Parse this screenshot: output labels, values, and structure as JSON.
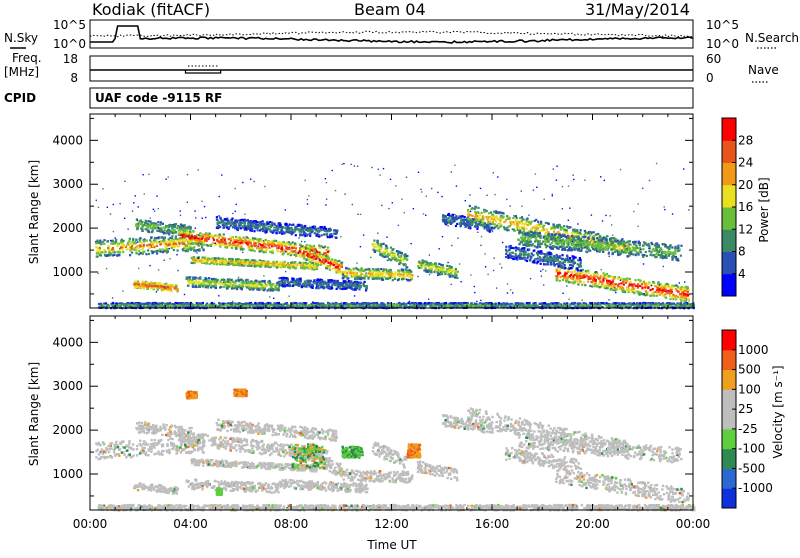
{
  "header": {
    "station": "Kodiak (fitACF)",
    "beam": "Beam 04",
    "date": "31/May/2014"
  },
  "top_panels": {
    "nsky_label": "N.Sky",
    "nsky_ticks": [
      "10^5",
      "10^0"
    ],
    "nsearch_label": "N.Search",
    "nsearch_ticks": [
      "10^5",
      "10^0"
    ],
    "freq_label_line1": "Freq.",
    "freq_label_line2": "[MHz]",
    "freq_ticks": [
      "18",
      "8"
    ],
    "nave_label": "Nave",
    "nave_ticks": [
      "60",
      "0"
    ],
    "cpid_label": "CPID",
    "cpid_text": "UAF code -9115 RF"
  },
  "x_axis": {
    "label": "Time UT",
    "ticks": [
      "00:00",
      "04:00",
      "08:00",
      "12:00",
      "16:00",
      "20:00",
      "00:00"
    ]
  },
  "colors": {
    "power_scale": [
      "#0000ff",
      "#2a4fb5",
      "#3a8a66",
      "#6abf3a",
      "#e8e020",
      "#f09a18",
      "#e8551a",
      "#ff0000"
    ],
    "velocity_scale": [
      "#1030e0",
      "#2a6ad0",
      "#2e8a52",
      "#5fcf40",
      "#bebebe",
      "#bebebe",
      "#f0a020",
      "#f06018",
      "#ff0000"
    ]
  },
  "chart_data": [
    {
      "type": "heatmap",
      "title": "",
      "xlabel": "Time UT",
      "ylabel": "Slant Range [km]",
      "x_ticks": [
        "00:00",
        "04:00",
        "08:00",
        "12:00",
        "16:00",
        "20:00",
        "00:00"
      ],
      "xlim_hours": [
        0,
        24
      ],
      "ylim": [
        180,
        4600
      ],
      "y_ticks": [
        1000,
        2000,
        3000,
        4000
      ],
      "colorbar": {
        "label": "Power [dB]",
        "ticks": [
          4,
          8,
          12,
          16,
          20,
          24,
          28
        ],
        "range": [
          0,
          32
        ]
      },
      "grid": false
    },
    {
      "type": "heatmap",
      "title": "",
      "xlabel": "Time UT",
      "ylabel": "Slant Range [km]",
      "x_ticks": [
        "00:00",
        "04:00",
        "08:00",
        "12:00",
        "16:00",
        "20:00",
        "00:00"
      ],
      "xlim_hours": [
        0,
        24
      ],
      "ylim": [
        180,
        4600
      ],
      "y_ticks": [
        1000,
        2000,
        3000,
        4000
      ],
      "colorbar": {
        "label": "Velocity [m s⁻¹]",
        "ticks": [
          "1000",
          "500",
          "100",
          "25",
          "-25",
          "-100",
          "-500",
          "-1000"
        ]
      },
      "grid": false
    }
  ]
}
